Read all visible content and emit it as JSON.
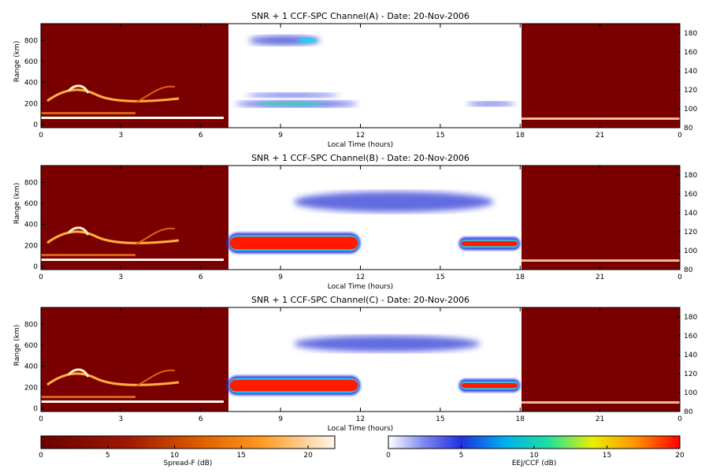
{
  "chart_data": [
    {
      "type": "heatmap",
      "title": "SNR + 1 CCF-SPC Channel(A) - Date: 20-Nov-2006",
      "xlabel": "Local Time (hours)",
      "ylabel": "Range (km)",
      "xlim": [
        0,
        24
      ],
      "ylim_left": [
        0,
        960
      ],
      "ylim_right": [
        80,
        190
      ],
      "x_ticks": [
        "0",
        "3",
        "6",
        "9",
        "12",
        "15",
        "18",
        "21",
        "0"
      ],
      "y_ticks_left": [
        "0",
        "200",
        "400",
        "600",
        "800"
      ],
      "y_ticks_right": [
        "80",
        "100",
        "120",
        "140",
        "160",
        "180"
      ],
      "spread_f_hours": [
        [
          0,
          7
        ],
        [
          18,
          24
        ]
      ],
      "eej_ccf_hours": [
        7,
        18
      ],
      "features": [
        {
          "kind": "eej",
          "x": [
            7.3,
            11.9
          ],
          "y": [
            190,
            250
          ],
          "peak_db": 12
        },
        {
          "kind": "eej",
          "x": [
            7.7,
            11.2
          ],
          "y": [
            280,
            320
          ],
          "peak_db": 5
        },
        {
          "kind": "ccf",
          "x": [
            7.8,
            10.5
          ],
          "y": [
            760,
            850
          ],
          "peak_db": 8
        },
        {
          "kind": "eej",
          "x": [
            16.0,
            17.8
          ],
          "y": [
            200,
            240
          ],
          "peak_db": 4
        }
      ]
    },
    {
      "type": "heatmap",
      "title": "SNR + 1 CCF-SPC Channel(B) - Date: 20-Nov-2006",
      "xlabel": "Local Time (hours)",
      "ylabel": "Range (km)",
      "xlim": [
        0,
        24
      ],
      "ylim_left": [
        0,
        960
      ],
      "ylim_right": [
        80,
        190
      ],
      "x_ticks": [
        "0",
        "3",
        "6",
        "9",
        "12",
        "15",
        "18",
        "21",
        "0"
      ],
      "y_ticks_left": [
        "0",
        "200",
        "400",
        "600",
        "800"
      ],
      "y_ticks_right": [
        "80",
        "100",
        "120",
        "140",
        "160",
        "180"
      ],
      "spread_f_hours": [
        [
          0,
          7
        ],
        [
          18,
          24
        ]
      ],
      "eej_ccf_hours": [
        7,
        18
      ],
      "features": [
        {
          "kind": "eej",
          "x": [
            7.0,
            12.0
          ],
          "y": [
            150,
            340
          ],
          "peak_db": 20
        },
        {
          "kind": "eej",
          "x": [
            15.7,
            18.0
          ],
          "y": [
            180,
            300
          ],
          "peak_db": 20
        },
        {
          "kind": "ccf",
          "x": [
            9.5,
            17.0
          ],
          "y": [
            530,
            720
          ],
          "peak_db": 4
        }
      ]
    },
    {
      "type": "heatmap",
      "title": "SNR + 1 CCF-SPC Channel(C) - Date: 20-Nov-2006",
      "xlabel": "Local Time (hours)",
      "ylabel": "Range (km)",
      "xlim": [
        0,
        24
      ],
      "ylim_left": [
        0,
        960
      ],
      "ylim_right": [
        80,
        190
      ],
      "x_ticks": [
        "0",
        "3",
        "6",
        "9",
        "12",
        "15",
        "18",
        "21",
        "0"
      ],
      "y_ticks_left": [
        "0",
        "200",
        "400",
        "600",
        "800"
      ],
      "y_ticks_right": [
        "80",
        "100",
        "120",
        "140",
        "160",
        "180"
      ],
      "spread_f_hours": [
        [
          0,
          7
        ],
        [
          18,
          24
        ]
      ],
      "eej_ccf_hours": [
        7,
        18
      ],
      "features": [
        {
          "kind": "eej",
          "x": [
            7.0,
            12.0
          ],
          "y": [
            150,
            330
          ],
          "peak_db": 20
        },
        {
          "kind": "eej",
          "x": [
            15.7,
            18.0
          ],
          "y": [
            180,
            300
          ],
          "peak_db": 20
        },
        {
          "kind": "ccf",
          "x": [
            9.5,
            16.5
          ],
          "y": [
            550,
            700
          ],
          "peak_db": 3
        }
      ]
    }
  ],
  "colorbars": [
    {
      "label": "Spread-F (dB)",
      "range": [
        0,
        22
      ],
      "ticks": [
        "0",
        "5",
        "10",
        "15",
        "20"
      ],
      "colormap": "hot"
    },
    {
      "label": "EEJ/CCF (dB)",
      "range": [
        0,
        20
      ],
      "ticks": [
        "0",
        "5",
        "10",
        "15",
        "20"
      ],
      "colormap": "rainbow"
    }
  ],
  "colors": {
    "spread_f_bg": "#7a0000",
    "eej_bg": "#ffffff",
    "eej_strong": "#ff1a00",
    "ccf_blue": "#3a46d8"
  }
}
